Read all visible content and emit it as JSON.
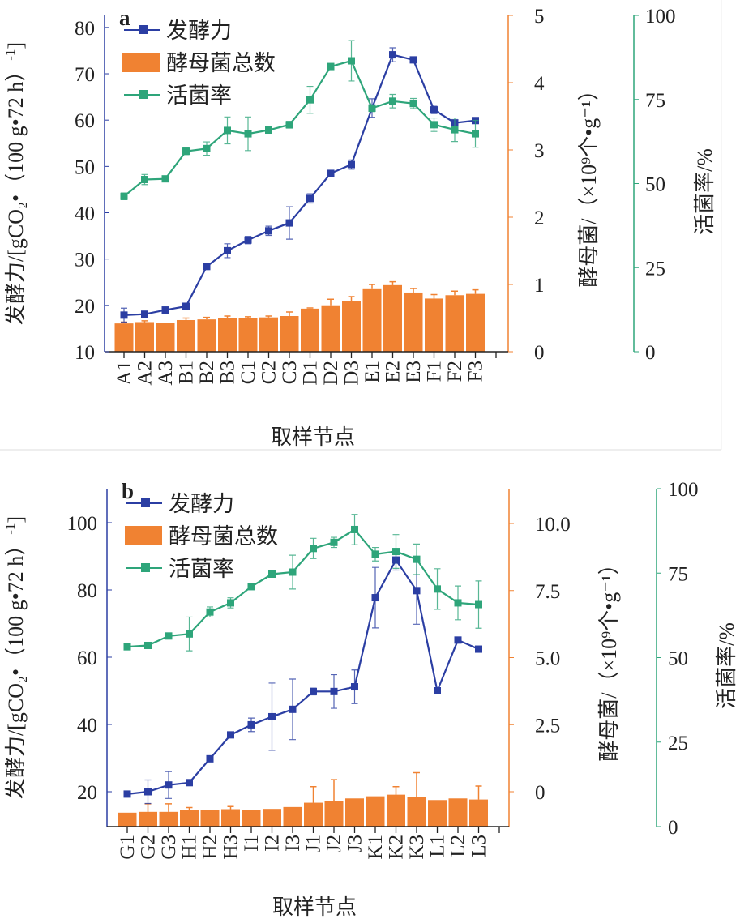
{
  "colors": {
    "fermentation": "#2b3ea3",
    "yeast": "#f08232",
    "viability": "#2ea57a",
    "axis": "#222222"
  },
  "chart_data": [
    {
      "type": "bar+line",
      "panel_label": "a",
      "xlabel": "取样节点",
      "categories": [
        "A1",
        "A2",
        "A3",
        "B1",
        "B2",
        "B3",
        "C1",
        "C2",
        "C3",
        "D1",
        "D2",
        "D3",
        "E1",
        "E2",
        "E3",
        "F1",
        "F2",
        "F3"
      ],
      "axes": {
        "left": {
          "label": "发酵力/[gCO₂•（100 g•72 h）",
          "label_sup": "-1",
          "label_end": "]",
          "ylim": [
            10,
            82.6
          ],
          "ticks": [
            10,
            20,
            30,
            40,
            50,
            60,
            70,
            80
          ]
        },
        "right1": {
          "label": "酵母菌/（×10⁹个•g⁻¹）",
          "ylim": [
            0,
            5
          ],
          "ticks": [
            0,
            1,
            2,
            3,
            4,
            5
          ]
        },
        "right2": {
          "label": "活菌率/%",
          "ylim": [
            0,
            100
          ],
          "ticks": [
            0,
            25,
            50,
            75,
            100
          ]
        }
      },
      "series": [
        {
          "name": "发酵力",
          "kind": "line",
          "axis": "left",
          "values": [
            17.9,
            18.1,
            19.0,
            19.8,
            28.4,
            31.8,
            34.1,
            36.1,
            37.8,
            43.1,
            48.5,
            50.4,
            62.6,
            74.1,
            73.0,
            62.2,
            59.4,
            59.9
          ],
          "errors": [
            1.5,
            0.5,
            0.5,
            0.5,
            0.5,
            1.5,
            0.8,
            1,
            3.5,
            1,
            0.5,
            1,
            2,
            1.5,
            0.5,
            0.8,
            0.5,
            0.5
          ]
        },
        {
          "name": "酵母菌总数",
          "kind": "bar",
          "axis": "right1",
          "values": [
            0.42,
            0.44,
            0.43,
            0.47,
            0.48,
            0.5,
            0.5,
            0.51,
            0.53,
            0.64,
            0.69,
            0.75,
            0.93,
            0.99,
            0.88,
            0.79,
            0.84,
            0.86
          ],
          "errors": [
            0.02,
            0.02,
            0,
            0.03,
            0.03,
            0.03,
            0.02,
            0.02,
            0.06,
            0.01,
            0.09,
            0.07,
            0.07,
            0.05,
            0.06,
            0.06,
            0.06,
            0.06
          ]
        },
        {
          "name": "活菌率",
          "kind": "line",
          "axis": "right2",
          "values": [
            46.2,
            51.2,
            51.4,
            59.6,
            60.4,
            65.8,
            64.8,
            65.9,
            67.5,
            74.9,
            84.8,
            86.5,
            72.4,
            74.5,
            73.8,
            67.5,
            66.0,
            64.8
          ],
          "errors": [
            1,
            1.5,
            0.5,
            1,
            2,
            4,
            5,
            0.5,
            1,
            4,
            0.5,
            6,
            1,
            2,
            1.5,
            2,
            3.5,
            4
          ]
        }
      ]
    },
    {
      "type": "bar+line",
      "panel_label": "b",
      "xlabel": "取样节点",
      "categories": [
        "G1",
        "G2",
        "G3",
        "H1",
        "H2",
        "H3",
        "I1",
        "I2",
        "I3",
        "J1",
        "J2",
        "J3",
        "K1",
        "K2",
        "K3",
        "L1",
        "L2",
        "L3"
      ],
      "axes": {
        "left": {
          "label": "发酵力/[gCO₂•（100 g•72 h）",
          "label_sup": "-1",
          "label_end": "]",
          "ylim": [
            9.6,
            100
          ],
          "ticks": [
            20,
            40,
            60,
            80,
            100
          ]
        },
        "right1": {
          "label": "酵母菌/（×10⁹个•g⁻¹）",
          "ylim": [
            -1.3,
            10
          ],
          "ticks": [
            0,
            2.5,
            5.0,
            7.5,
            10.0
          ],
          "tick_labels": [
            "0",
            "2.5",
            "5.0",
            "7.5",
            "10.0"
          ]
        },
        "right2": {
          "label": "活菌率/%",
          "ylim": [
            0,
            100
          ],
          "ticks": [
            0,
            25,
            50,
            75,
            100
          ]
        }
      },
      "series": [
        {
          "name": "发酵力",
          "kind": "line",
          "axis": "left",
          "values": [
            19.3,
            20.0,
            22.0,
            22.7,
            29.8,
            36.9,
            39.9,
            42.3,
            44.5,
            49.8,
            49.8,
            51.2,
            77.7,
            88.9,
            79.8,
            50.0,
            65.1,
            62.4
          ],
          "errors": [
            0.5,
            3.5,
            4,
            0.5,
            0.5,
            0.5,
            2,
            10,
            9,
            1,
            5,
            5,
            9,
            3,
            10,
            0.5,
            0.5,
            0.5
          ]
        },
        {
          "name": "酵母菌总数",
          "kind": "bar",
          "axis": "right1",
          "values": [
            -0.78,
            -0.75,
            -0.75,
            -0.69,
            -0.69,
            -0.65,
            -0.67,
            -0.64,
            -0.57,
            -0.41,
            -0.35,
            -0.25,
            -0.17,
            -0.11,
            -0.19,
            -0.31,
            -0.25,
            -0.29
          ],
          "errors": [
            0,
            0.3,
            0.3,
            0.1,
            0,
            0.1,
            0,
            0,
            0,
            0.6,
            0.8,
            0,
            0,
            0.3,
            0.9,
            0,
            0,
            0.5
          ]
        },
        {
          "name": "活菌率",
          "kind": "line",
          "axis": "right2",
          "values": [
            53.2,
            53.6,
            56.4,
            57.0,
            63.5,
            66.2,
            71.0,
            74.7,
            75.3,
            82.3,
            84.1,
            87.9,
            80.6,
            81.4,
            79.1,
            70.3,
            66.2,
            65.7
          ],
          "errors": [
            0.5,
            0.5,
            0.5,
            5,
            1.5,
            1.5,
            0.5,
            0.5,
            5,
            3,
            1.5,
            4.5,
            2,
            5,
            4.5,
            6,
            5,
            7
          ]
        }
      ]
    }
  ]
}
